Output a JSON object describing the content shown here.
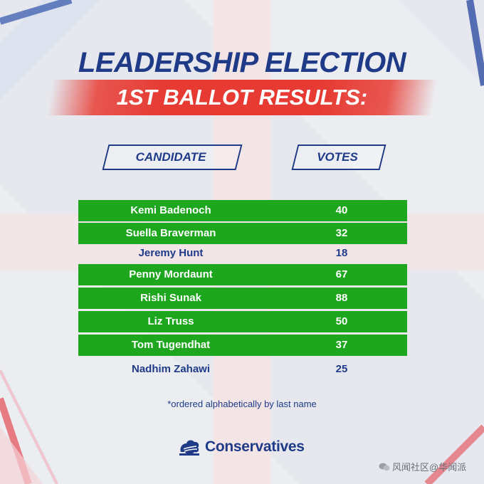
{
  "header": {
    "title": "LEADERSHIP ELECTION",
    "subtitle": "1ST BALLOT RESULTS:"
  },
  "table": {
    "columns": [
      "CANDIDATE",
      "VOTES"
    ],
    "rows": [
      {
        "candidate": "Kemi Badenoch",
        "votes": "40",
        "highlighted": true
      },
      {
        "candidate": "Suella Braverman",
        "votes": "32",
        "highlighted": true
      },
      {
        "candidate": "Jeremy Hunt",
        "votes": "18",
        "highlighted": false
      },
      {
        "candidate": "Penny Mordaunt",
        "votes": "67",
        "highlighted": true
      },
      {
        "candidate": "Rishi Sunak",
        "votes": "88",
        "highlighted": true
      },
      {
        "candidate": "Liz Truss",
        "votes": "50",
        "highlighted": true
      },
      {
        "candidate": "Tom Tugendhat",
        "votes": "37",
        "highlighted": true
      },
      {
        "candidate": "Nadhim Zahawi",
        "votes": "25",
        "highlighted": false
      }
    ]
  },
  "footnote": "*ordered alphabetically by last name",
  "logo": {
    "text": "Conservatives",
    "icon": "tree-icon"
  },
  "watermark": {
    "text": "风闻社区@华闻派",
    "icon": "wechat-icon"
  },
  "colors": {
    "navy": "#1f3b88",
    "red": "#e63a33",
    "green": "#1fa61f",
    "background": "#eceef2"
  }
}
